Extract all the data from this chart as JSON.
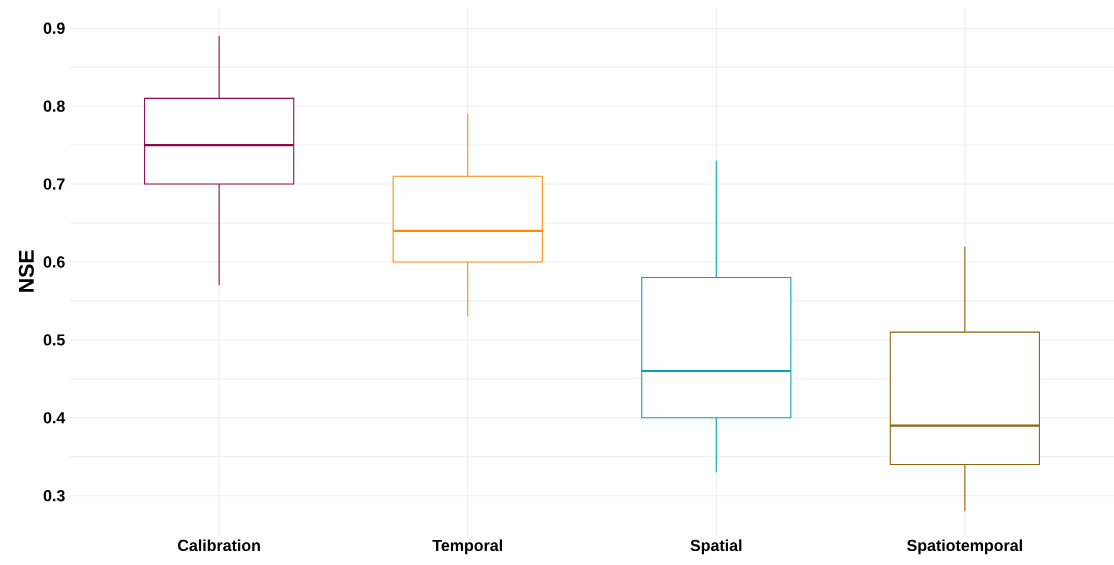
{
  "chart_data": {
    "type": "box",
    "ylabel": "NSE",
    "categories": [
      "Calibration",
      "Temporal",
      "Spatial",
      "Spatiotemporal"
    ],
    "boxes": [
      {
        "low": 0.57,
        "q1": 0.7,
        "median": 0.75,
        "q3": 0.81,
        "high": 0.89
      },
      {
        "low": 0.53,
        "q1": 0.6,
        "median": 0.64,
        "q3": 0.71,
        "high": 0.79
      },
      {
        "low": 0.33,
        "q1": 0.4,
        "median": 0.46,
        "q3": 0.58,
        "high": 0.73
      },
      {
        "low": 0.28,
        "q1": 0.34,
        "median": 0.39,
        "q3": 0.51,
        "high": 0.62
      }
    ],
    "colors": [
      "#8b0a50",
      "#ff8c00",
      "#00a5b5",
      "#8b6508"
    ],
    "ylim": [
      0.25,
      0.926
    ],
    "yticks": [
      0.3,
      {
        "value": 0.35,
        "label": null
      },
      0.4,
      {
        "value": 0.45,
        "label": null
      },
      0.5,
      {
        "value": 0.55,
        "label": null
      },
      0.6,
      {
        "value": 0.65,
        "label": null
      },
      0.7,
      {
        "value": 0.75,
        "label": null
      },
      0.8,
      {
        "value": 0.85,
        "label": null
      },
      0.9
    ],
    "grid": true
  }
}
